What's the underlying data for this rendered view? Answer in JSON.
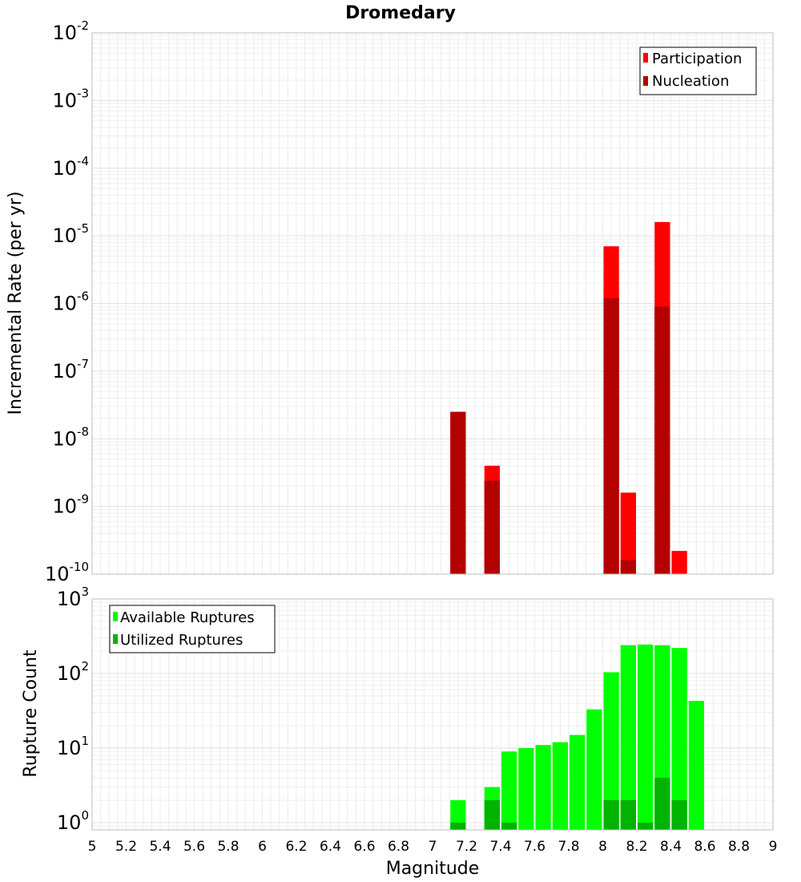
{
  "chart_data": [
    {
      "type": "bar",
      "title": "Dromedary",
      "xlabel": "",
      "ylabel": "Incremental Rate (per yr)",
      "xlim": [
        5,
        9
      ],
      "ylim": [
        1e-10,
        0.01
      ],
      "yscale": "log",
      "grid": true,
      "legend_position": "top-right",
      "bar_width": 0.1,
      "y_ticks": [
        {
          "base": "10",
          "exp": "-2",
          "value": 0.01
        },
        {
          "base": "10",
          "exp": "-3",
          "value": 0.001
        },
        {
          "base": "10",
          "exp": "-4",
          "value": 0.0001
        },
        {
          "base": "10",
          "exp": "-5",
          "value": 1e-05
        },
        {
          "base": "10",
          "exp": "-6",
          "value": 1e-06
        },
        {
          "base": "10",
          "exp": "-7",
          "value": 1e-07
        },
        {
          "base": "10",
          "exp": "-8",
          "value": 1e-08
        },
        {
          "base": "10",
          "exp": "-9",
          "value": 1e-09
        },
        {
          "base": "10",
          "exp": "-10",
          "value": 1e-10
        }
      ],
      "series": [
        {
          "name": "Participation",
          "color": "#ff0000",
          "x": [
            7.15,
            7.35,
            8.05,
            8.15,
            8.35,
            8.45
          ],
          "values": [
            2.5e-08,
            4e-09,
            7e-06,
            1.6e-09,
            1.6e-05,
            2.2e-10
          ]
        },
        {
          "name": "Nucleation",
          "color": "#b30000",
          "x": [
            7.15,
            7.35,
            8.05,
            8.15,
            8.35
          ],
          "values": [
            2.5e-08,
            2.4e-09,
            1.2e-06,
            1.6e-10,
            9e-07
          ]
        }
      ]
    },
    {
      "type": "bar",
      "title": "",
      "xlabel": "Magnitude",
      "ylabel": "Rupture Count",
      "xlim": [
        5,
        9
      ],
      "ylim": [
        0.8,
        1000
      ],
      "yscale": "log",
      "grid": true,
      "legend_position": "top-left",
      "bar_width": 0.1,
      "x_ticks": [
        "5",
        "5.2",
        "5.4",
        "5.6",
        "5.8",
        "6",
        "6.2",
        "6.4",
        "6.6",
        "6.8",
        "7",
        "7.2",
        "7.4",
        "7.6",
        "7.8",
        "8",
        "8.2",
        "8.4",
        "8.6",
        "8.8",
        "9"
      ],
      "y_ticks": [
        {
          "base": "10",
          "exp": "3",
          "value": 1000
        },
        {
          "base": "10",
          "exp": "2",
          "value": 100
        },
        {
          "base": "10",
          "exp": "1",
          "value": 10
        },
        {
          "base": "10",
          "exp": "0",
          "value": 1
        }
      ],
      "series": [
        {
          "name": "Available Ruptures",
          "color": "#00ff00",
          "x": [
            7.15,
            7.35,
            7.45,
            7.55,
            7.65,
            7.75,
            7.85,
            7.95,
            8.05,
            8.15,
            8.25,
            8.35,
            8.45,
            8.55
          ],
          "values": [
            2,
            3,
            9,
            10,
            11,
            12,
            15,
            33,
            104,
            240,
            245,
            240,
            220,
            43
          ]
        },
        {
          "name": "Utilized Ruptures",
          "color": "#00b300",
          "x": [
            7.15,
            7.35,
            7.45,
            8.05,
            8.15,
            8.25,
            8.35,
            8.45
          ],
          "values": [
            1,
            2,
            1,
            2,
            2,
            1,
            4,
            2
          ]
        }
      ]
    }
  ]
}
